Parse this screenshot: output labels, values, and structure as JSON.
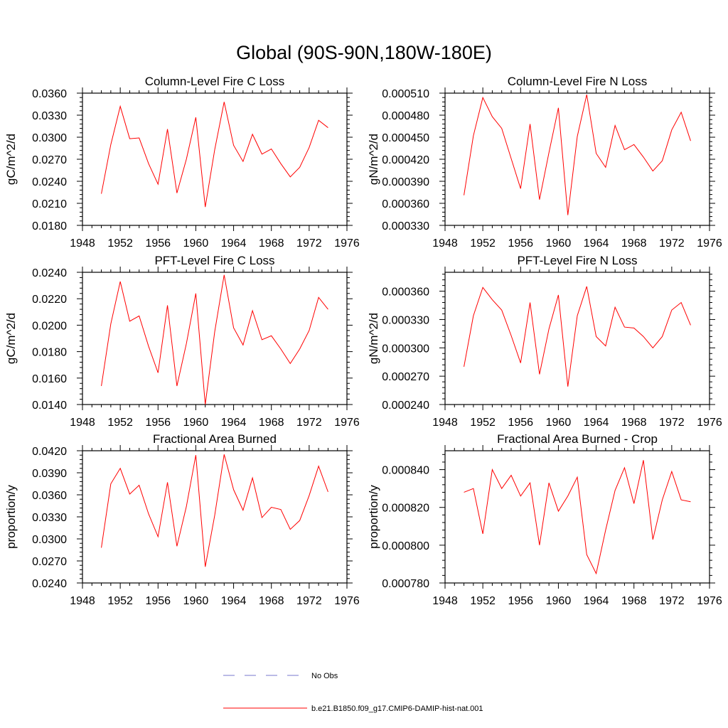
{
  "figure": {
    "title": "Global (90S-90N,180W-180E)"
  },
  "legend": {
    "items": [
      {
        "label": "No Obs",
        "color": "#7777cc",
        "style": "dashed"
      },
      {
        "label": "b.e21.B1850.f09_g17.CMIP6-DAMIP-hist-nat.001",
        "color": "#ff0000",
        "style": "solid"
      }
    ]
  },
  "chart_data": [
    {
      "type": "line",
      "title": "Column-Level Fire C Loss",
      "ylabel": "gC/m^2/d",
      "xlabel": "",
      "xlim": [
        1948,
        1976
      ],
      "ylim": [
        0.018,
        0.036
      ],
      "xticks": [
        "1948",
        "1952",
        "1956",
        "1960",
        "1964",
        "1968",
        "1972",
        "1976"
      ],
      "yticks": [
        "0.0180",
        "0.0210",
        "0.0240",
        "0.0270",
        "0.0300",
        "0.0330",
        "0.0360"
      ],
      "series": [
        {
          "color": "#ff0000",
          "x": [
            1950,
            1951,
            1952,
            1953,
            1954,
            1955,
            1956,
            1957,
            1958,
            1959,
            1960,
            1961,
            1962,
            1963,
            1964,
            1965,
            1966,
            1967,
            1968,
            1969,
            1970,
            1971,
            1972,
            1973,
            1974
          ],
          "y": [
            0.0223,
            0.029,
            0.0342,
            0.0298,
            0.0299,
            0.0264,
            0.0236,
            0.0311,
            0.0224,
            0.027,
            0.0327,
            0.0205,
            0.0283,
            0.0348,
            0.0289,
            0.0267,
            0.0304,
            0.0277,
            0.0284,
            0.0264,
            0.0246,
            0.0259,
            0.0286,
            0.0323,
            0.0313
          ]
        }
      ]
    },
    {
      "type": "line",
      "title": "Column-Level Fire N Loss",
      "ylabel": "gN/m^2/d",
      "xlabel": "",
      "xlim": [
        1948,
        1976
      ],
      "ylim": [
        0.00033,
        0.00051
      ],
      "xticks": [
        "1948",
        "1952",
        "1956",
        "1960",
        "1964",
        "1968",
        "1972",
        "1976"
      ],
      "yticks": [
        "0.000330",
        "0.000360",
        "0.000390",
        "0.000420",
        "0.000450",
        "0.000480",
        "0.000510"
      ],
      "series": [
        {
          "color": "#ff0000",
          "x": [
            1950,
            1951,
            1952,
            1953,
            1954,
            1955,
            1956,
            1957,
            1958,
            1959,
            1960,
            1961,
            1962,
            1963,
            1964,
            1965,
            1966,
            1967,
            1968,
            1969,
            1970,
            1971,
            1972,
            1973,
            1974
          ],
          "y": [
            0.000371,
            0.000452,
            0.000504,
            0.000478,
            0.000462,
            0.000421,
            0.00038,
            0.000468,
            0.000365,
            0.000429,
            0.00049,
            0.000344,
            0.000451,
            0.000508,
            0.000428,
            0.000409,
            0.000466,
            0.000433,
            0.00044,
            0.000423,
            0.000404,
            0.000418,
            0.00046,
            0.000484,
            0.000445
          ]
        }
      ]
    },
    {
      "type": "line",
      "title": "PFT-Level Fire C Loss",
      "ylabel": "gC/m^2/d",
      "xlabel": "",
      "xlim": [
        1948,
        1976
      ],
      "ylim": [
        0.014,
        0.024
      ],
      "xticks": [
        "1948",
        "1952",
        "1956",
        "1960",
        "1964",
        "1968",
        "1972",
        "1976"
      ],
      "yticks": [
        "0.0140",
        "0.0160",
        "0.0180",
        "0.0200",
        "0.0220",
        "0.0240"
      ],
      "series": [
        {
          "color": "#ff0000",
          "x": [
            1950,
            1951,
            1952,
            1953,
            1954,
            1955,
            1956,
            1957,
            1958,
            1959,
            1960,
            1961,
            1962,
            1963,
            1964,
            1965,
            1966,
            1967,
            1968,
            1969,
            1970,
            1971,
            1972,
            1973,
            1974
          ],
          "y": [
            0.0154,
            0.0201,
            0.0233,
            0.0203,
            0.0207,
            0.0184,
            0.0164,
            0.0215,
            0.0154,
            0.0186,
            0.0224,
            0.014,
            0.0195,
            0.0238,
            0.0198,
            0.0185,
            0.0211,
            0.0189,
            0.0192,
            0.0182,
            0.0171,
            0.0182,
            0.0196,
            0.0221,
            0.0212
          ]
        }
      ]
    },
    {
      "type": "line",
      "title": "PFT-Level Fire N Loss",
      "ylabel": "gN/m^2/d",
      "xlabel": "",
      "xlim": [
        1948,
        1976
      ],
      "ylim": [
        0.00024,
        0.00038
      ],
      "xticks": [
        "1948",
        "1952",
        "1956",
        "1960",
        "1964",
        "1968",
        "1972",
        "1976"
      ],
      "yticks": [
        "0.000240",
        "0.000270",
        "0.000300",
        "0.000330",
        "0.000360"
      ],
      "series": [
        {
          "color": "#ff0000",
          "x": [
            1950,
            1951,
            1952,
            1953,
            1954,
            1955,
            1956,
            1957,
            1958,
            1959,
            1960,
            1961,
            1962,
            1963,
            1964,
            1965,
            1966,
            1967,
            1968,
            1969,
            1970,
            1971,
            1972,
            1973,
            1974
          ],
          "y": [
            0.00028,
            0.000334,
            0.000364,
            0.000351,
            0.00034,
            0.000313,
            0.000284,
            0.000348,
            0.000272,
            0.00032,
            0.000356,
            0.000259,
            0.000334,
            0.000365,
            0.000312,
            0.000302,
            0.000343,
            0.000322,
            0.000321,
            0.000312,
            0.0003,
            0.000312,
            0.00034,
            0.000348,
            0.000324
          ]
        }
      ]
    },
    {
      "type": "line",
      "title": "Fractional Area Burned",
      "ylabel": "proportion/y",
      "xlabel": "",
      "xlim": [
        1948,
        1976
      ],
      "ylim": [
        0.024,
        0.042
      ],
      "xticks": [
        "1948",
        "1952",
        "1956",
        "1960",
        "1964",
        "1968",
        "1972",
        "1976"
      ],
      "yticks": [
        "0.0240",
        "0.0270",
        "0.0300",
        "0.0330",
        "0.0360",
        "0.0390",
        "0.0420"
      ],
      "series": [
        {
          "color": "#ff0000",
          "x": [
            1950,
            1951,
            1952,
            1953,
            1954,
            1955,
            1956,
            1957,
            1958,
            1959,
            1960,
            1961,
            1962,
            1963,
            1964,
            1965,
            1966,
            1967,
            1968,
            1969,
            1970,
            1971,
            1972,
            1973,
            1974
          ],
          "y": [
            0.0288,
            0.0375,
            0.0396,
            0.0361,
            0.0373,
            0.0334,
            0.0303,
            0.0377,
            0.029,
            0.0344,
            0.0414,
            0.0262,
            0.0332,
            0.0415,
            0.0367,
            0.0339,
            0.0383,
            0.0329,
            0.0343,
            0.034,
            0.0313,
            0.0325,
            0.0359,
            0.0399,
            0.0364
          ]
        }
      ]
    },
    {
      "type": "line",
      "title": "Fractional Area Burned - Crop",
      "ylabel": "proportion/y",
      "xlabel": "",
      "xlim": [
        1948,
        1976
      ],
      "ylim": [
        0.00078,
        0.00085
      ],
      "xticks": [
        "1948",
        "1952",
        "1956",
        "1960",
        "1964",
        "1968",
        "1972",
        "1976"
      ],
      "yticks": [
        "0.000780",
        "0.000800",
        "0.000820",
        "0.000840"
      ],
      "series": [
        {
          "color": "#ff0000",
          "x": [
            1950,
            1951,
            1952,
            1953,
            1954,
            1955,
            1956,
            1957,
            1958,
            1959,
            1960,
            1961,
            1962,
            1963,
            1964,
            1965,
            1966,
            1967,
            1968,
            1969,
            1970,
            1971,
            1972,
            1973,
            1974
          ],
          "y": [
            0.000828,
            0.00083,
            0.000806,
            0.00084,
            0.00083,
            0.000837,
            0.000826,
            0.000833,
            0.0008,
            0.000833,
            0.000818,
            0.000826,
            0.000836,
            0.000795,
            0.000785,
            0.000808,
            0.000829,
            0.000841,
            0.000822,
            0.000845,
            0.000803,
            0.000824,
            0.000839,
            0.000824,
            0.000823
          ]
        }
      ]
    }
  ]
}
